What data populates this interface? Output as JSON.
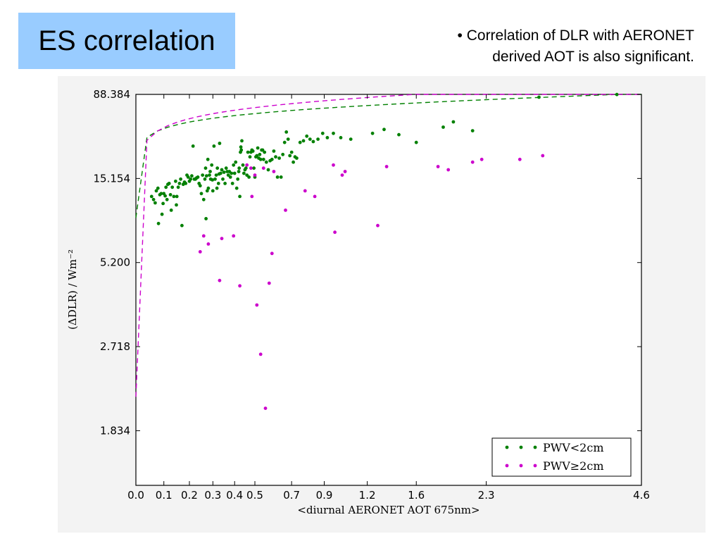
{
  "slide": {
    "title": "ES correlation",
    "bullet_line1": "• Correlation of DLR with AERONET",
    "bullet_line2": "derived AOT is also significant."
  },
  "colors": {
    "title_bg": "#99ccff",
    "green_series": "#008000",
    "magenta_series": "#cc00cc"
  },
  "chart_data": {
    "type": "scatter",
    "xlabel": "<diurnal AERONET AOT 675nm>",
    "ylabel": "(ΔDLR) / Wm⁻²",
    "x_tick_labels": [
      "0.0",
      "0.1",
      "0.2",
      "0.3",
      "0.4",
      "0.5",
      "0.7",
      "0.9",
      "1.2",
      "1.6",
      "2.3",
      "4.6"
    ],
    "y_tick_labels": [
      "88.384",
      "15.154",
      "5.200",
      "2.718",
      "1.834"
    ],
    "y_ticks": [
      88.384,
      15.154,
      5.2,
      2.718,
      1.834
    ],
    "x_transform": "log(1+x)",
    "y_transform": "log(log(y))",
    "xlim": [
      0.0,
      4.6
    ],
    "ylim": [
      1.55,
      88.384
    ],
    "legend_position": "lower-right",
    "grid": false,
    "series": [
      {
        "name": "PWV<2cm",
        "marker": "dot",
        "fit": {
          "type": "power",
          "a": 55.0,
          "b": 0.26,
          "c": 8.6
        },
        "points": [
          [
            0.055,
            11.5
          ],
          [
            0.062,
            11.0
          ],
          [
            0.068,
            10.5
          ],
          [
            0.072,
            12.5
          ],
          [
            0.078,
            13.0
          ],
          [
            0.08,
            8.0
          ],
          [
            0.085,
            11.8
          ],
          [
            0.09,
            12.0
          ],
          [
            0.093,
            9.0
          ],
          [
            0.097,
            10.4
          ],
          [
            0.1,
            12.0
          ],
          [
            0.105,
            11.6
          ],
          [
            0.108,
            13.2
          ],
          [
            0.112,
            11.0
          ],
          [
            0.115,
            13.8
          ],
          [
            0.12,
            14.0
          ],
          [
            0.125,
            11.8
          ],
          [
            0.128,
            9.5
          ],
          [
            0.132,
            13.2
          ],
          [
            0.138,
            11.5
          ],
          [
            0.145,
            14.5
          ],
          [
            0.148,
            10.2
          ],
          [
            0.15,
            11.5
          ],
          [
            0.155,
            13.2
          ],
          [
            0.16,
            14.0
          ],
          [
            0.165,
            15.0
          ],
          [
            0.17,
            7.8
          ],
          [
            0.175,
            13.8
          ],
          [
            0.18,
            14.3
          ],
          [
            0.185,
            14.0
          ],
          [
            0.19,
            16.0
          ],
          [
            0.195,
            15.5
          ],
          [
            0.2,
            14.5
          ],
          [
            0.205,
            15.0
          ],
          [
            0.21,
            15.8
          ],
          [
            0.215,
            27.0
          ],
          [
            0.22,
            15.0
          ],
          [
            0.225,
            15.0
          ],
          [
            0.23,
            15.3
          ],
          [
            0.235,
            15.5
          ],
          [
            0.24,
            14.0
          ],
          [
            0.245,
            13.5
          ],
          [
            0.25,
            12.0
          ],
          [
            0.255,
            16.0
          ],
          [
            0.26,
            11.0
          ],
          [
            0.265,
            15.0
          ],
          [
            0.268,
            18.0
          ],
          [
            0.27,
            8.5
          ],
          [
            0.272,
            15.8
          ],
          [
            0.275,
            12.5
          ],
          [
            0.278,
            21.0
          ],
          [
            0.28,
            13.0
          ],
          [
            0.285,
            16.0
          ],
          [
            0.288,
            17.0
          ],
          [
            0.29,
            15.0
          ],
          [
            0.295,
            19.0
          ],
          [
            0.298,
            14.8
          ],
          [
            0.3,
            12.5
          ],
          [
            0.305,
            27.0
          ],
          [
            0.31,
            15.0
          ],
          [
            0.315,
            16.0
          ],
          [
            0.318,
            13.0
          ],
          [
            0.32,
            18.0
          ],
          [
            0.325,
            14.0
          ],
          [
            0.328,
            16.3
          ],
          [
            0.33,
            28.5
          ],
          [
            0.335,
            16.5
          ],
          [
            0.34,
            17.5
          ],
          [
            0.345,
            15.0
          ],
          [
            0.35,
            16.8
          ],
          [
            0.355,
            14.0
          ],
          [
            0.36,
            18.0
          ],
          [
            0.365,
            17.0
          ],
          [
            0.37,
            16.0
          ],
          [
            0.375,
            17.0
          ],
          [
            0.38,
            15.5
          ],
          [
            0.385,
            16.5
          ],
          [
            0.39,
            14.0
          ],
          [
            0.395,
            19.0
          ],
          [
            0.4,
            16.5
          ],
          [
            0.405,
            20.0
          ],
          [
            0.41,
            13.0
          ],
          [
            0.415,
            15.0
          ],
          [
            0.42,
            17.0
          ],
          [
            0.422,
            18.0
          ],
          [
            0.425,
            11.5
          ],
          [
            0.428,
            24.0
          ],
          [
            0.43,
            26.5
          ],
          [
            0.432,
            25.0
          ],
          [
            0.435,
            30.0
          ],
          [
            0.44,
            19.0
          ],
          [
            0.445,
            16.5
          ],
          [
            0.45,
            17.5
          ],
          [
            0.455,
            18.0
          ],
          [
            0.46,
            16.0
          ],
          [
            0.465,
            24.0
          ],
          [
            0.47,
            15.5
          ],
          [
            0.475,
            22.0
          ],
          [
            0.48,
            24.0
          ],
          [
            0.485,
            25.0
          ],
          [
            0.49,
            24.5
          ],
          [
            0.495,
            18.0
          ],
          [
            0.5,
            15.5
          ],
          [
            0.505,
            22.0
          ],
          [
            0.51,
            22.5
          ],
          [
            0.515,
            26.0
          ],
          [
            0.52,
            21.5
          ],
          [
            0.525,
            23.0
          ],
          [
            0.53,
            21.0
          ],
          [
            0.535,
            25.0
          ],
          [
            0.54,
            25.0
          ],
          [
            0.545,
            21.0
          ],
          [
            0.55,
            24.0
          ],
          [
            0.56,
            20.0
          ],
          [
            0.57,
            17.5
          ],
          [
            0.58,
            20.5
          ],
          [
            0.59,
            21.0
          ],
          [
            0.6,
            24.5
          ],
          [
            0.61,
            22.0
          ],
          [
            0.62,
            15.5
          ],
          [
            0.63,
            21.5
          ],
          [
            0.64,
            15.5
          ],
          [
            0.65,
            23.0
          ],
          [
            0.66,
            29.0
          ],
          [
            0.67,
            36.0
          ],
          [
            0.68,
            31.0
          ],
          [
            0.69,
            22.5
          ],
          [
            0.7,
            24.0
          ],
          [
            0.71,
            20.0
          ],
          [
            0.72,
            22.0
          ],
          [
            0.73,
            21.5
          ],
          [
            0.75,
            29.0
          ],
          [
            0.77,
            30.0
          ],
          [
            0.79,
            33.0
          ],
          [
            0.81,
            31.0
          ],
          [
            0.83,
            29.5
          ],
          [
            0.86,
            31.0
          ],
          [
            0.89,
            35.0
          ],
          [
            0.92,
            32.0
          ],
          [
            0.96,
            35.0
          ],
          [
            1.01,
            32.0
          ],
          [
            1.08,
            31.0
          ],
          [
            1.24,
            35.0
          ],
          [
            1.33,
            38.0
          ],
          [
            1.45,
            34.0
          ],
          [
            1.6,
            29.0
          ],
          [
            1.85,
            40.0
          ],
          [
            1.95,
            45.0
          ],
          [
            2.15,
            37.0
          ],
          [
            2.95,
            82.0
          ],
          [
            4.15,
            88.0
          ]
        ]
      },
      {
        "name": "PWV≥2cm",
        "marker": "dot",
        "fit": {
          "type": "power",
          "a": 75.0,
          "b": 0.3,
          "c": 2.1
        },
        "points": [
          [
            0.245,
            5.8
          ],
          [
            0.26,
            6.9
          ],
          [
            0.28,
            6.3
          ],
          [
            0.33,
            4.4
          ],
          [
            0.34,
            6.7
          ],
          [
            0.395,
            6.9
          ],
          [
            0.425,
            4.2
          ],
          [
            0.46,
            19.0
          ],
          [
            0.48,
            18.0
          ],
          [
            0.485,
            11.5
          ],
          [
            0.5,
            16.0
          ],
          [
            0.51,
            3.6
          ],
          [
            0.53,
            2.6
          ],
          [
            0.545,
            18.0
          ],
          [
            0.555,
            2.0
          ],
          [
            0.575,
            4.3
          ],
          [
            0.59,
            5.7
          ],
          [
            0.6,
            17.0
          ],
          [
            0.665,
            9.5
          ],
          [
            0.78,
            12.5
          ],
          [
            0.84,
            11.5
          ],
          [
            0.96,
            19.0
          ],
          [
            0.97,
            7.2
          ],
          [
            1.02,
            16.0
          ],
          [
            1.04,
            17.0
          ],
          [
            1.28,
            7.8
          ],
          [
            1.35,
            18.5
          ],
          [
            1.8,
            18.5
          ],
          [
            1.9,
            17.5
          ],
          [
            2.15,
            20.0
          ],
          [
            2.25,
            21.0
          ],
          [
            2.7,
            21.0
          ],
          [
            3.0,
            22.5
          ]
        ]
      }
    ]
  }
}
